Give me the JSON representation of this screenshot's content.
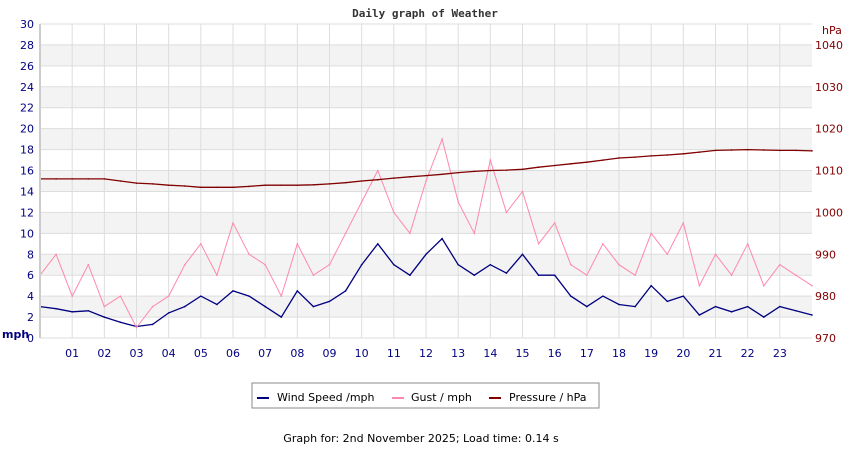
{
  "chart_data": {
    "type": "line",
    "title": "Daily graph of Weather",
    "left_axis": {
      "unit": "mph",
      "ylim": [
        0,
        30
      ],
      "ticks": [
        0,
        2,
        4,
        6,
        8,
        10,
        12,
        14,
        16,
        18,
        20,
        22,
        24,
        26,
        28,
        30
      ],
      "color": "#000080"
    },
    "right_axis": {
      "unit": "hPa",
      "ylim": [
        970,
        1045
      ],
      "ticks": [
        970,
        980,
        990,
        1000,
        1010,
        1020,
        1030,
        1040
      ],
      "color": "#800000"
    },
    "x_ticks": [
      "01",
      "02",
      "03",
      "04",
      "05",
      "06",
      "07",
      "08",
      "09",
      "10",
      "11",
      "12",
      "13",
      "14",
      "15",
      "16",
      "17",
      "18",
      "19",
      "20",
      "21",
      "22",
      "23"
    ],
    "x_hours": [
      0,
      0.5,
      1,
      1.5,
      2,
      2.5,
      3,
      3.5,
      4,
      4.5,
      5,
      5.5,
      6,
      6.5,
      7,
      7.5,
      8,
      8.5,
      9,
      9.5,
      10,
      10.5,
      11,
      11.5,
      12,
      12.5,
      13,
      13.5,
      14,
      14.5,
      15,
      15.5,
      16,
      16.5,
      17,
      17.5,
      18,
      18.5,
      19,
      19.5,
      20,
      20.5,
      21,
      21.5,
      22,
      22.5,
      23,
      23.5,
      24
    ],
    "grid": true,
    "legend_position": "bottom",
    "series": [
      {
        "name": "Wind Speed /mph",
        "color": "#000080",
        "axis": "left",
        "values": [
          3,
          2.8,
          2.5,
          2.6,
          2,
          1.5,
          1.1,
          1.3,
          2.4,
          3,
          4,
          3.2,
          4.5,
          4,
          3,
          2,
          4.5,
          3,
          3.5,
          4.5,
          7,
          9,
          7,
          6,
          8,
          9.5,
          7,
          6,
          7,
          6.2,
          8,
          6,
          6,
          4,
          3,
          4,
          3.2,
          3,
          5,
          3.5,
          4,
          2.2,
          3,
          2.5,
          3,
          2,
          3,
          2.6,
          2.2
        ]
      },
      {
        "name": "Gust / mph",
        "color": "#ff88aa",
        "axis": "left",
        "values": [
          6,
          8,
          4,
          7,
          3,
          4,
          1,
          3,
          4,
          7,
          9,
          6,
          11,
          8,
          7,
          4,
          9,
          6,
          7,
          10,
          13,
          16,
          12,
          10,
          15,
          19,
          13,
          10,
          17,
          12,
          14,
          9,
          11,
          7,
          6,
          9,
          7,
          6,
          10,
          8,
          11,
          5,
          8,
          6,
          9,
          5,
          7,
          6,
          5
        ]
      },
      {
        "name": "Pressure / hPa",
        "color": "#800000",
        "axis": "right",
        "values": [
          1008,
          1008,
          1008,
          1008,
          1008,
          1007.5,
          1007,
          1006.8,
          1006.5,
          1006.3,
          1006,
          1006,
          1006,
          1006.2,
          1006.5,
          1006.5,
          1006.5,
          1006.6,
          1006.8,
          1007.1,
          1007.5,
          1007.8,
          1008.2,
          1008.5,
          1008.8,
          1009.1,
          1009.5,
          1009.8,
          1010,
          1010.1,
          1010.3,
          1010.8,
          1011.2,
          1011.6,
          1012,
          1012.5,
          1013,
          1013.2,
          1013.5,
          1013.7,
          1014,
          1014.4,
          1014.8,
          1014.9,
          1015,
          1014.9,
          1014.8,
          1014.8,
          1014.7
        ]
      }
    ]
  },
  "footer": "Graph for: 2nd November 2025; Load time: 0.14 s"
}
